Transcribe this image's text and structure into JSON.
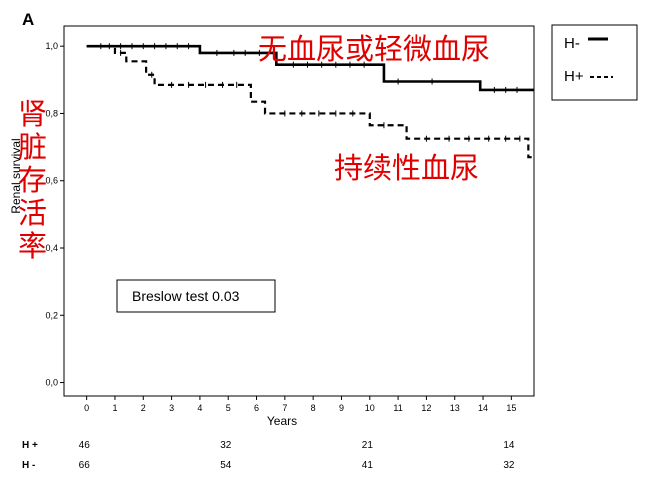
{
  "panel_letter": "A",
  "annotations": {
    "no_hematuria_cn": "无血尿或轻微血尿",
    "hematuria_cn": "持续性血尿",
    "renal_survival_cn": [
      "肾",
      "脏",
      "存",
      "活",
      "率"
    ],
    "stat_box": "Breslow test 0.03"
  },
  "risk_table": {
    "rows": [
      {
        "label": "H +",
        "counts": [
          46,
          32,
          21,
          14
        ]
      },
      {
        "label": "H -",
        "counts": [
          66,
          54,
          41,
          32
        ]
      }
    ],
    "times": [
      0,
      5,
      10,
      15
    ]
  },
  "colors": {
    "axis": "#000000",
    "annotation": "#e00000",
    "line": "#000000"
  },
  "chart_data": {
    "type": "line",
    "subtype": "kaplan-meier",
    "xlabel": "Years",
    "ylabel": "Renal survival",
    "xlim": [
      -0.8,
      15.8
    ],
    "ylim": [
      -0.04,
      1.06
    ],
    "x_ticks": [
      0,
      1,
      2,
      3,
      4,
      5,
      6,
      7,
      8,
      9,
      10,
      11,
      12,
      13,
      14,
      15
    ],
    "y_ticks": [
      {
        "value": 0.0,
        "label": "0,0"
      },
      {
        "value": 0.2,
        "label": "0,2"
      },
      {
        "value": 0.4,
        "label": "0,4"
      },
      {
        "value": 0.6,
        "label": "0,6"
      },
      {
        "value": 0.8,
        "label": "0,8"
      },
      {
        "value": 1.0,
        "label": "1,0"
      }
    ],
    "legend_position": "top-right",
    "grid": false,
    "series": [
      {
        "name": "H-",
        "style": "solid",
        "steps": [
          [
            0,
            1.0
          ],
          [
            4,
            0.98
          ],
          [
            6.7,
            0.945
          ],
          [
            10.5,
            0.895
          ],
          [
            13.9,
            0.87
          ],
          [
            15.8,
            0.87
          ]
        ],
        "censor_times": [
          0.8,
          1.2,
          1.6,
          2.0,
          2.4,
          2.8,
          3.2,
          3.6,
          4.6,
          5.2,
          5.6,
          6.1,
          7.3,
          7.8,
          8.3,
          8.8,
          9.3,
          9.8,
          11.0,
          12.2,
          14.4,
          14.8,
          15.2
        ]
      },
      {
        "name": "H+",
        "style": "dashed",
        "steps": [
          [
            0,
            1.0
          ],
          [
            1,
            0.98
          ],
          [
            1.4,
            0.955
          ],
          [
            2.1,
            0.915
          ],
          [
            2.4,
            0.885
          ],
          [
            5.8,
            0.835
          ],
          [
            6.3,
            0.8
          ],
          [
            10.0,
            0.765
          ],
          [
            11.3,
            0.725
          ],
          [
            15.6,
            0.67
          ],
          [
            15.8,
            0.67
          ]
        ],
        "censor_times": [
          0.5,
          1.2,
          2.3,
          3.0,
          3.6,
          4.2,
          4.8,
          5.3,
          7.0,
          7.6,
          8.2,
          8.8,
          9.4,
          10.5,
          12.0,
          12.8,
          13.5,
          14.2,
          14.8,
          15.3
        ]
      }
    ]
  }
}
